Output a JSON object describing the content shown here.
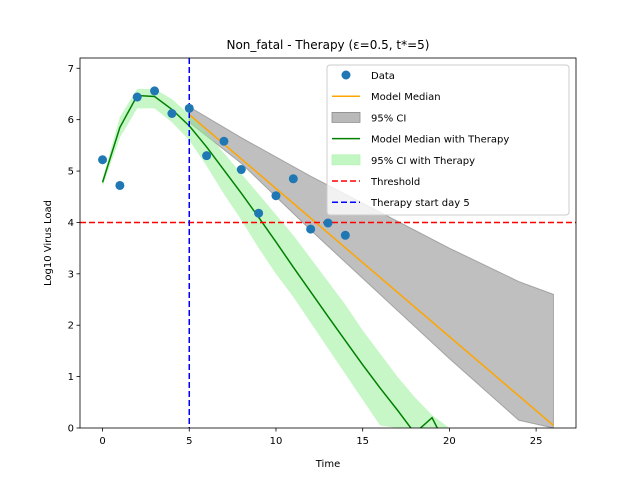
{
  "chart_data": {
    "type": "line",
    "title": "Non_fatal - Therapy (ε=0.5, t*=5)",
    "xlabel": "Time",
    "ylabel": "Log10 Virus Load",
    "xlim": [
      -1.3,
      27.3
    ],
    "ylim": [
      0,
      7.2
    ],
    "xticks": [
      0,
      5,
      10,
      15,
      20,
      25
    ],
    "yticks": [
      0,
      1,
      2,
      3,
      4,
      5,
      6,
      7
    ],
    "legend_position": "top-right",
    "threshold": 4.0,
    "therapy_start_day": 5,
    "data_points": {
      "name": "Data",
      "color": "#1f77b4",
      "x": [
        0,
        1,
        2,
        3,
        4,
        5,
        6,
        7,
        8,
        9,
        10,
        11,
        12,
        13,
        14
      ],
      "y": [
        5.22,
        4.72,
        6.44,
        6.56,
        6.12,
        6.22,
        5.3,
        5.58,
        5.03,
        4.18,
        4.52,
        4.85,
        3.87,
        3.99,
        3.75
      ]
    },
    "model_median": {
      "name": "Model Median",
      "color": "#ffa500",
      "x": [
        5,
        26
      ],
      "y": [
        6.1,
        0.05
      ]
    },
    "ci_95": {
      "name": "95% CI",
      "color": "#808080",
      "x": [
        5,
        8,
        12,
        16,
        20,
        24,
        26
      ],
      "upper": [
        6.25,
        5.65,
        4.9,
        4.2,
        3.5,
        2.85,
        2.6
      ],
      "lower": [
        5.95,
        5.15,
        3.85,
        2.6,
        1.35,
        0.15,
        0.0
      ]
    },
    "model_median_therapy": {
      "name": "Model Median with Therapy",
      "color": "#008000",
      "x": [
        0,
        1,
        2,
        3,
        4,
        5,
        6,
        7,
        8,
        9,
        10,
        11,
        12,
        13,
        14,
        15,
        16,
        17,
        18,
        19,
        19.3
      ],
      "y": [
        4.78,
        5.85,
        6.47,
        6.45,
        6.2,
        5.88,
        5.47,
        5.02,
        4.57,
        4.1,
        3.62,
        3.13,
        2.65,
        2.17,
        1.7,
        1.23,
        0.78,
        0.35,
        -0.1,
        0.2,
        0.0
      ]
    },
    "ci_95_therapy": {
      "name": "95% CI with Therapy",
      "color": "#90ee90",
      "x": [
        0,
        1,
        2,
        3,
        4,
        5,
        6,
        7,
        8,
        9,
        10,
        11,
        12,
        13,
        14,
        15,
        16,
        17,
        18,
        19,
        20
      ],
      "upper": [
        4.85,
        6.05,
        6.6,
        6.6,
        6.4,
        6.1,
        5.75,
        5.35,
        4.95,
        4.55,
        4.15,
        3.75,
        3.3,
        2.85,
        2.4,
        1.9,
        1.45,
        1.0,
        0.6,
        0.25,
        0.0
      ],
      "lower": [
        4.7,
        5.65,
        6.22,
        6.22,
        5.95,
        5.6,
        5.1,
        4.55,
        4.05,
        3.5,
        3.0,
        2.55,
        2.05,
        1.55,
        1.05,
        0.55,
        0.05,
        0.0,
        0.0,
        0.0,
        0.0
      ]
    },
    "threshold_line": {
      "name": "Threshold",
      "color": "#ff0000"
    },
    "therapy_line": {
      "name": "Therapy start day 5",
      "color": "#0000ff"
    }
  }
}
